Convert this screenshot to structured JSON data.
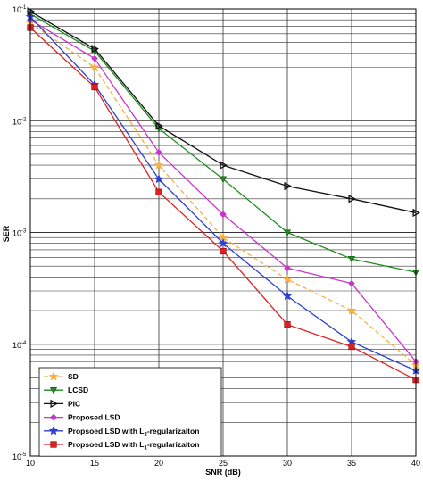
{
  "chart_data": {
    "type": "line",
    "title": "",
    "xlabel": "SNR (dB)",
    "ylabel": "SER",
    "x": [
      10,
      15,
      20,
      25,
      30,
      35,
      40
    ],
    "xlim": [
      10,
      40
    ],
    "ylim": [
      1e-05,
      0.1
    ],
    "yscale": "log",
    "grid": true,
    "legend_position": "bottom-left",
    "x_ticks": [
      "10",
      "15",
      "20",
      "25",
      "30",
      "35",
      "40"
    ],
    "y_ticks": [
      {
        "base": "10",
        "exp": "-5",
        "value": 1e-05
      },
      {
        "base": "10",
        "exp": "-4",
        "value": 0.0001
      },
      {
        "base": "10",
        "exp": "-3",
        "value": 0.001
      },
      {
        "base": "10",
        "exp": "-2",
        "value": 0.01
      },
      {
        "base": "10",
        "exp": "-1",
        "value": 0.1
      }
    ],
    "series": [
      {
        "name": "SD",
        "color": "#f5b041",
        "marker": "star",
        "dash": true,
        "values": [
          0.075,
          0.03,
          0.004,
          0.0009,
          0.00038,
          0.0002,
          6.5e-05
        ]
      },
      {
        "name": "LCSD",
        "color": "#1e8c1e",
        "marker": "triangle-down",
        "dash": false,
        "values": [
          0.09,
          0.042,
          0.0085,
          0.003,
          0.001,
          0.00058,
          0.00044
        ]
      },
      {
        "name": "PIC",
        "color": "#111111",
        "marker": "triangle-right",
        "dash": false,
        "values": [
          0.095,
          0.044,
          0.009,
          0.004,
          0.0026,
          0.002,
          0.0015
        ]
      },
      {
        "name": "Proposed LSD",
        "color": "#cc33cc",
        "marker": "diamond",
        "dash": false,
        "values": [
          0.08,
          0.036,
          0.0052,
          0.00145,
          0.00048,
          0.00035,
          7e-05
        ]
      },
      {
        "name": "Propsoed LSD with L",
        "name_sub": "2",
        "name_tail": "-regularizaiton",
        "color": "#2e3ecf",
        "marker": "star",
        "dash": false,
        "values": [
          0.085,
          0.021,
          0.003,
          0.0008,
          0.00027,
          0.000105,
          5.8e-05
        ]
      },
      {
        "name": "Propsoed LSD with L",
        "name_sub": "1",
        "name_tail": "-regularizaiton",
        "color": "#e02020",
        "marker": "square",
        "dash": false,
        "values": [
          0.068,
          0.02,
          0.0023,
          0.00068,
          0.00015,
          9.5e-05,
          4.8e-05
        ]
      }
    ]
  }
}
